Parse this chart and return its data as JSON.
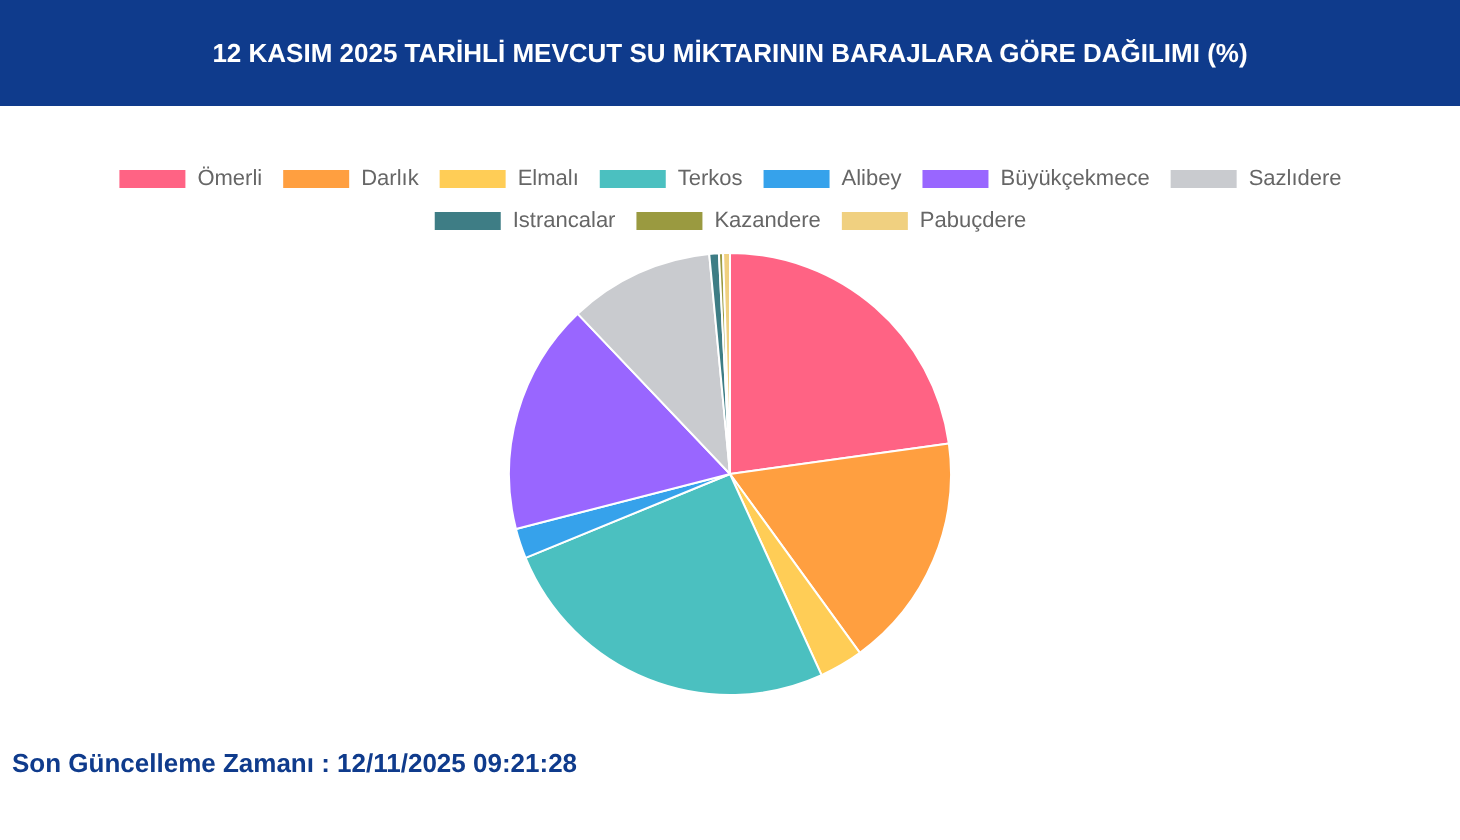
{
  "chart_data": {
    "type": "pie",
    "title": "12 KASIM 2025 TARİHLİ MEVCUT SU MİKTARININ BARAJLARA GÖRE DAĞILIMI (%)",
    "categories": [
      "Ömerli",
      "Darlık",
      "Elmalı",
      "Terkos",
      "Alibey",
      "Büyükçekmece",
      "Sazlıdere",
      "Istrancalar",
      "Kazandere",
      "Pabuçdere"
    ],
    "values": [
      22.8,
      17.2,
      3.2,
      25.6,
      2.2,
      16.9,
      10.6,
      0.7,
      0.3,
      0.5
    ],
    "colors": [
      "#ff6384",
      "#ff9f40",
      "#ffcd56",
      "#4bc0c0",
      "#36a2eb",
      "#9966ff",
      "#c9cbcf",
      "#3e7d85",
      "#9a9a40",
      "#f0d080"
    ],
    "legend": "top",
    "annotations": [
      "Son Güncelleme Zamanı : 12/11/2025 09:21:28"
    ]
  }
}
